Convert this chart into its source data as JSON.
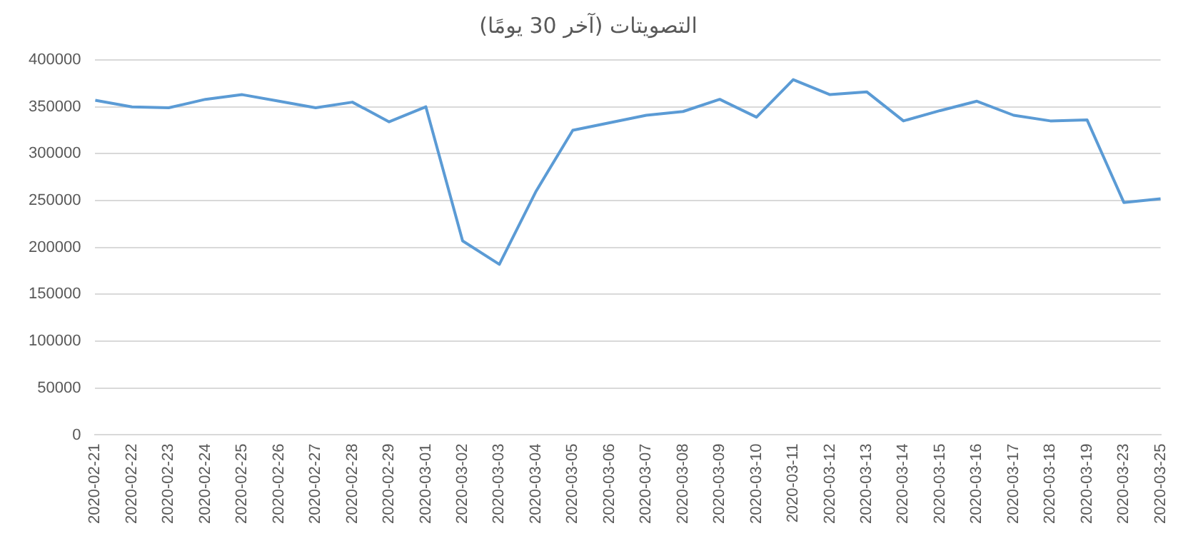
{
  "chart_data": {
    "type": "line",
    "title": "التصويتات (آخر 30 يومًا)",
    "categories": [
      "2020-02-21",
      "2020-02-22",
      "2020-02-23",
      "2020-02-24",
      "2020-02-25",
      "2020-02-26",
      "2020-02-27",
      "2020-02-28",
      "2020-02-29",
      "2020-03-01",
      "2020-03-02",
      "2020-03-03",
      "2020-03-04",
      "2020-03-05",
      "2020-03-06",
      "2020-03-07",
      "2020-03-08",
      "2020-03-09",
      "2020-03-10",
      "2020-03-11",
      "2020-03-12",
      "2020-03-13",
      "2020-03-14",
      "2020-03-15",
      "2020-03-16",
      "2020-03-17",
      "2020-03-18",
      "2020-03-19",
      "2020-03-23",
      "2020-03-25"
    ],
    "series": [
      {
        "color": "#5b9bd5",
        "values": [
          357000,
          350000,
          349000,
          358000,
          363000,
          356000,
          349000,
          355000,
          334000,
          350000,
          207000,
          182000,
          260000,
          325000,
          333000,
          341000,
          345000,
          358000,
          339000,
          379000,
          363000,
          366000,
          335000,
          346000,
          356000,
          341000,
          335000,
          336000,
          248000,
          252000
        ]
      }
    ],
    "ylim": [
      0,
      400000
    ],
    "yticks": [
      0,
      50000,
      100000,
      150000,
      200000,
      250000,
      300000,
      350000,
      400000
    ],
    "grid": "y",
    "legend": false,
    "marker": "none",
    "line_style": "solid"
  }
}
